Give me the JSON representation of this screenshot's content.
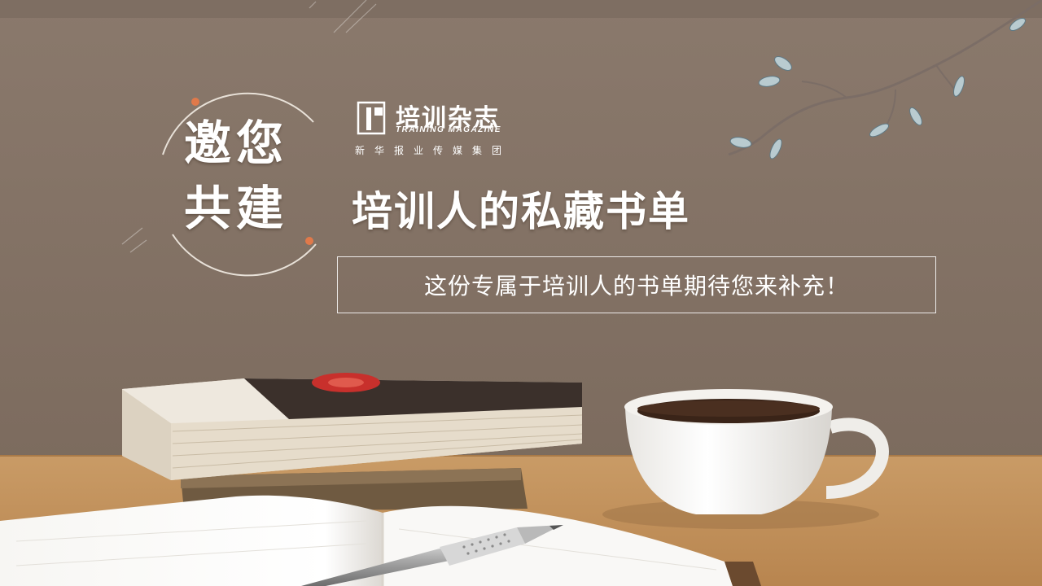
{
  "banner": {
    "invite_line1": "邀您",
    "invite_line2": "共建",
    "logo": {
      "name_cn": "培训杂志",
      "name_en": "TRAINING MAGAZINE",
      "publisher": "新华报业传媒集团"
    },
    "title": "培训人的私藏书单",
    "subtitle": "这份专属于培训人的书单期待您来补充！"
  },
  "colors": {
    "wall": "#8b7a6c",
    "table": "#c9985f",
    "text": "#ffffff",
    "book_cover": "#3b302b",
    "stamp": "#c8302c"
  }
}
